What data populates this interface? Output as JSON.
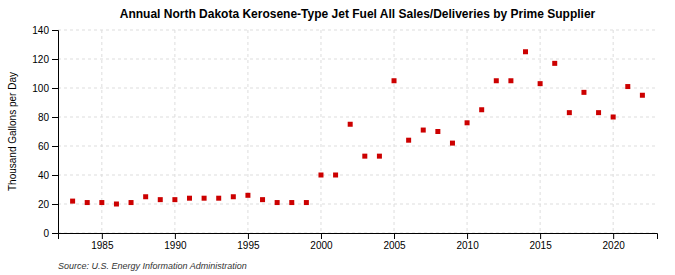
{
  "chart_data": {
    "type": "scatter",
    "title": "Annual North Dakota Kerosene-Type Jet Fuel All Sales/Deliveries by Prime Supplier",
    "y_label": "Thousand Gallons per Day",
    "annotations": [
      "Source: U.S. Energy Information Administration"
    ],
    "x": [
      1983,
      1984,
      1985,
      1986,
      1987,
      1988,
      1989,
      1990,
      1991,
      1992,
      1993,
      1994,
      1995,
      1996,
      1997,
      1998,
      1999,
      2000,
      2001,
      2002,
      2003,
      2004,
      2005,
      2006,
      2007,
      2008,
      2009,
      2010,
      2011,
      2012,
      2013,
      2014,
      2015,
      2016,
      2017,
      2018,
      2019,
      2020,
      2021,
      2022
    ],
    "values": [
      22,
      21,
      21,
      20,
      21,
      25,
      23,
      23,
      24,
      24,
      24,
      25,
      26,
      23,
      21,
      21,
      21,
      40,
      40,
      75,
      53,
      53,
      105,
      64,
      71,
      70,
      62,
      76,
      85,
      105,
      105,
      125,
      103,
      117,
      83,
      97,
      83,
      80,
      101,
      95
    ],
    "color": "#cc0000",
    "marker": "square",
    "xlim": [
      1982,
      2023
    ],
    "ylim": [
      0,
      140
    ],
    "xticks": [
      1985,
      1990,
      1995,
      2000,
      2005,
      2010,
      2015,
      2020
    ],
    "yticks": [
      0,
      20,
      40,
      60,
      80,
      100,
      120,
      140
    ],
    "grid": true
  }
}
